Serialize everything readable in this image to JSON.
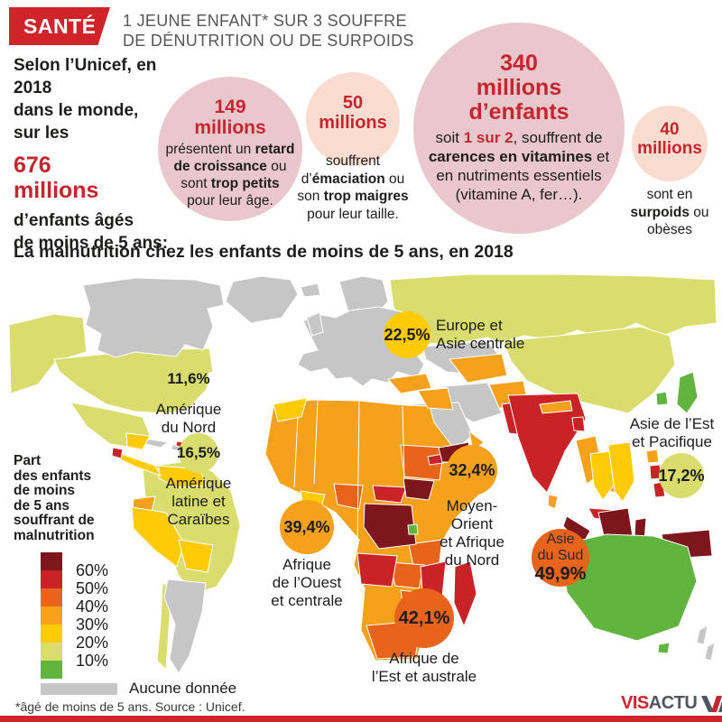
{
  "palette": {
    "brand-red": "#d0232a",
    "accent-red": "#c5262e",
    "title-gray": "#55565a",
    "circle-pink": "#e9c7cd",
    "circle-peach": "#fadcd0",
    "band60": "#7e161d",
    "band50": "#c92227",
    "band40": "#e8641a",
    "band30": "#f5a11c",
    "band20": "#fecb05",
    "band10": "#d8dd6e",
    "band0": "#61b43e",
    "nodata": "#c6c6c6"
  },
  "header": {
    "category": "SANTÉ",
    "title_line1": "1 JEUNE ENFANT* SUR 3 SOUFFRE",
    "title_line2": "DE DÉNUTRITION OU DE SURPOIDS"
  },
  "intro": {
    "line1": "Selon l’Unicef, en 2018",
    "line2": "dans le monde,",
    "line3": "sur les",
    "big_number": "676",
    "big_unit": "millions",
    "line4": "d’enfants âgés",
    "line5": "de moins de 5 ans:"
  },
  "stats": {
    "stunting": {
      "value": "149",
      "unit": "millions",
      "desc": [
        {
          "t": "présentent un ",
          "b": false
        },
        {
          "t": "retard de croissance",
          "b": true
        },
        {
          "t": " ou sont ",
          "b": false
        },
        {
          "t": "trop petits",
          "b": true
        },
        {
          "t": " pour leur âge.",
          "b": false
        }
      ]
    },
    "wasting": {
      "value": "50",
      "unit": "millions",
      "desc": [
        {
          "t": "souffrent d’",
          "b": false
        },
        {
          "t": "émaciation",
          "b": true
        },
        {
          "t": " ou son ",
          "b": false
        },
        {
          "t": "trop maigres",
          "b": true
        },
        {
          "t": " pour leur taille.",
          "b": false
        }
      ]
    },
    "micronutrients": {
      "value_line1": "340",
      "value_line2": "millions",
      "value_line3": "d’enfants",
      "desc": [
        {
          "t": "soit ",
          "b": false
        },
        {
          "t": "1 sur 2",
          "b": true,
          "r": true
        },
        {
          "t": ", souffrent de ",
          "b": false
        },
        {
          "t": "carences en vitamines",
          "b": true
        },
        {
          "t": " et en nutriments essentiels (vitamine A, fer…).",
          "b": false
        }
      ]
    },
    "overweight": {
      "value": "40",
      "unit": "millions",
      "desc": [
        {
          "t": "sont en ",
          "b": false
        },
        {
          "t": "surpoids",
          "b": true
        },
        {
          "t": " ou obèses",
          "b": false
        }
      ]
    }
  },
  "map": {
    "section_title": "La malnutrition chez les enfants de moins de 5 ans, en 2018",
    "legend": {
      "title_lines": [
        "Part",
        "des enfants",
        "de moins",
        "de 5 ans",
        "souffrant de",
        "malnutrition"
      ],
      "ticks": [
        "60%",
        "50%",
        "40%",
        "30%",
        "20%",
        "10%"
      ],
      "band_keys": [
        "band60",
        "band50",
        "band40",
        "band30",
        "band20",
        "band10",
        "band0"
      ],
      "nodata_label": "Aucune donnée"
    },
    "bubbles": [
      {
        "value": "11,6%",
        "label_lines": [
          "Amérique",
          "du Nord"
        ]
      },
      {
        "value": "16,5%",
        "label_lines": [
          "Amérique",
          "latine et",
          "Caraïbes"
        ]
      },
      {
        "value": "22,5%",
        "label_lines": [
          "Europe et",
          "Asie centrale"
        ]
      },
      {
        "value": "32,4%",
        "label_lines": [
          "Moyen-",
          "Orient",
          "et Afrique",
          "du Nord"
        ]
      },
      {
        "value": "39,4%",
        "label_lines": [
          "Afrique",
          "de l’Ouest",
          "et centrale"
        ]
      },
      {
        "value": "42,1%",
        "label_lines": [
          "Afrique de",
          "l’Est et australe"
        ]
      },
      {
        "value": "49,9%",
        "label_lines": [
          "Asie",
          "du Sud"
        ]
      },
      {
        "value": "17,2%",
        "label_lines": [
          "Asie de l’Est",
          "et Pacifique"
        ]
      }
    ]
  },
  "footer": {
    "footnote": "*âgé de moins de 5 ans. Source : Unicef.",
    "logo_red": "VIS",
    "logo_dark": "ACTU"
  },
  "chart_data": {
    "type": "heatmap",
    "subtype": "choropleth-world-map-with-region-bubbles",
    "title": "La malnutrition chez les enfants de moins de 5 ans, en 2018",
    "value_unit": "% des enfants de moins de 5 ans souffrant de malnutrition",
    "regions": [
      {
        "name": "Amérique du Nord",
        "value": 11.6
      },
      {
        "name": "Amérique latine et Caraïbes",
        "value": 16.5
      },
      {
        "name": "Europe et Asie centrale",
        "value": 22.5
      },
      {
        "name": "Moyen-Orient et Afrique du Nord",
        "value": 32.4
      },
      {
        "name": "Afrique de l’Ouest et centrale",
        "value": 39.4
      },
      {
        "name": "Afrique de l’Est et australe",
        "value": 42.1
      },
      {
        "name": "Asie du Sud",
        "value": 49.9
      },
      {
        "name": "Asie de l’Est et Pacifique",
        "value": 17.2
      }
    ],
    "color_scale_ticks_percent": [
      60,
      50,
      40,
      30,
      20,
      10
    ],
    "no_data_label": "Aucune donnée",
    "headline_stats": [
      {
        "value": 676,
        "unit": "millions",
        "label": "d’enfants âgés de moins de 5 ans (monde, 2018)"
      },
      {
        "value": 149,
        "unit": "millions",
        "label": "présentent un retard de croissance ou sont trop petits pour leur âge"
      },
      {
        "value": 50,
        "unit": "millions",
        "label": "souffrent d’émaciation ou son trop maigres pour leur taille"
      },
      {
        "value": 340,
        "unit": "millions",
        "label": "soit 1 sur 2, souffrent de carences en vitamines et en nutriments essentiels (vitamine A, fer…)"
      },
      {
        "value": 40,
        "unit": "millions",
        "label": "sont en surpoids ou obèses"
      }
    ]
  }
}
